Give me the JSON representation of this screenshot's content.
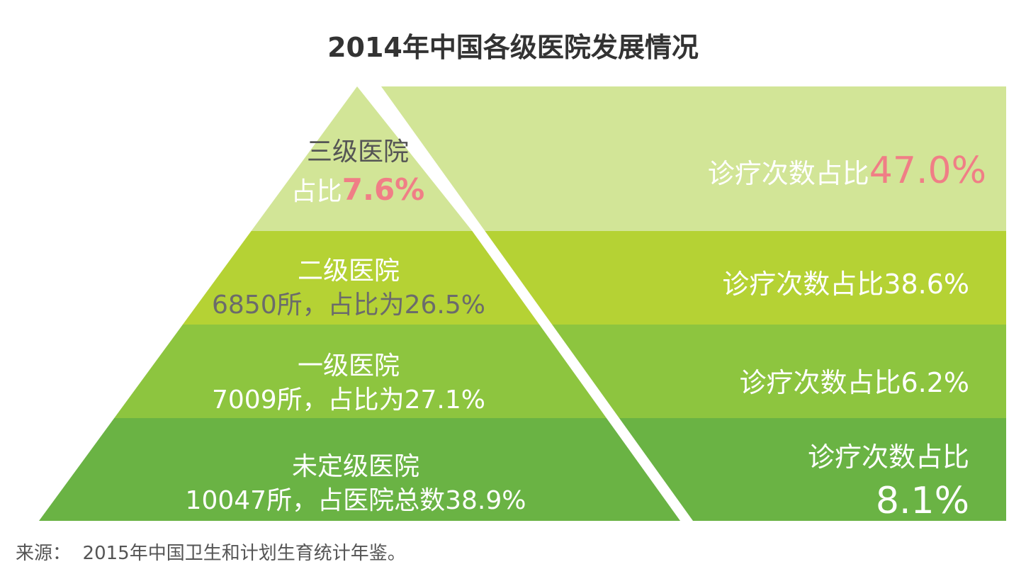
{
  "title": "2014年中国各级医院发展情况",
  "source": "来源：  2015年中国卫生和计划生育统计年鉴。",
  "chart_data": {
    "type": "pyramid",
    "tiers": [
      {
        "name": "三级医院",
        "left_line2_prefix": "占比",
        "left_line2_value": "7.6%",
        "share_hospitals_pct": 7.6,
        "right_prefix": "诊疗次数占比",
        "right_value": "47.0%",
        "share_visits_pct": 47.0,
        "fill": "#d2e597",
        "highlight": "#f07e86"
      },
      {
        "name": "二级医院",
        "left_line2_prefix": "6850所，占比为26.5%",
        "left_line2_value": "",
        "count": 6850,
        "share_hospitals_pct": 26.5,
        "right_prefix": "诊疗次数占比38.6%",
        "right_value": "",
        "share_visits_pct": 38.6,
        "fill": "#b5d234",
        "highlight": ""
      },
      {
        "name": "一级医院",
        "left_line2_prefix": "7009所，占比为27.1%",
        "left_line2_value": "",
        "count": 7009,
        "share_hospitals_pct": 27.1,
        "right_prefix": "诊疗次数占比6.2%",
        "right_value": "",
        "share_visits_pct": 6.2,
        "fill": "#8dc53f",
        "highlight": ""
      },
      {
        "name": "未定级医院",
        "left_line2_prefix": "10047所，占医院总数38.9%",
        "left_line2_value": "",
        "count": 10047,
        "share_hospitals_pct": 38.9,
        "right_prefix": "诊疗次数占比",
        "right_value": "8.1%",
        "share_visits_pct": 8.1,
        "fill": "#6ab344",
        "highlight": ""
      }
    ]
  }
}
